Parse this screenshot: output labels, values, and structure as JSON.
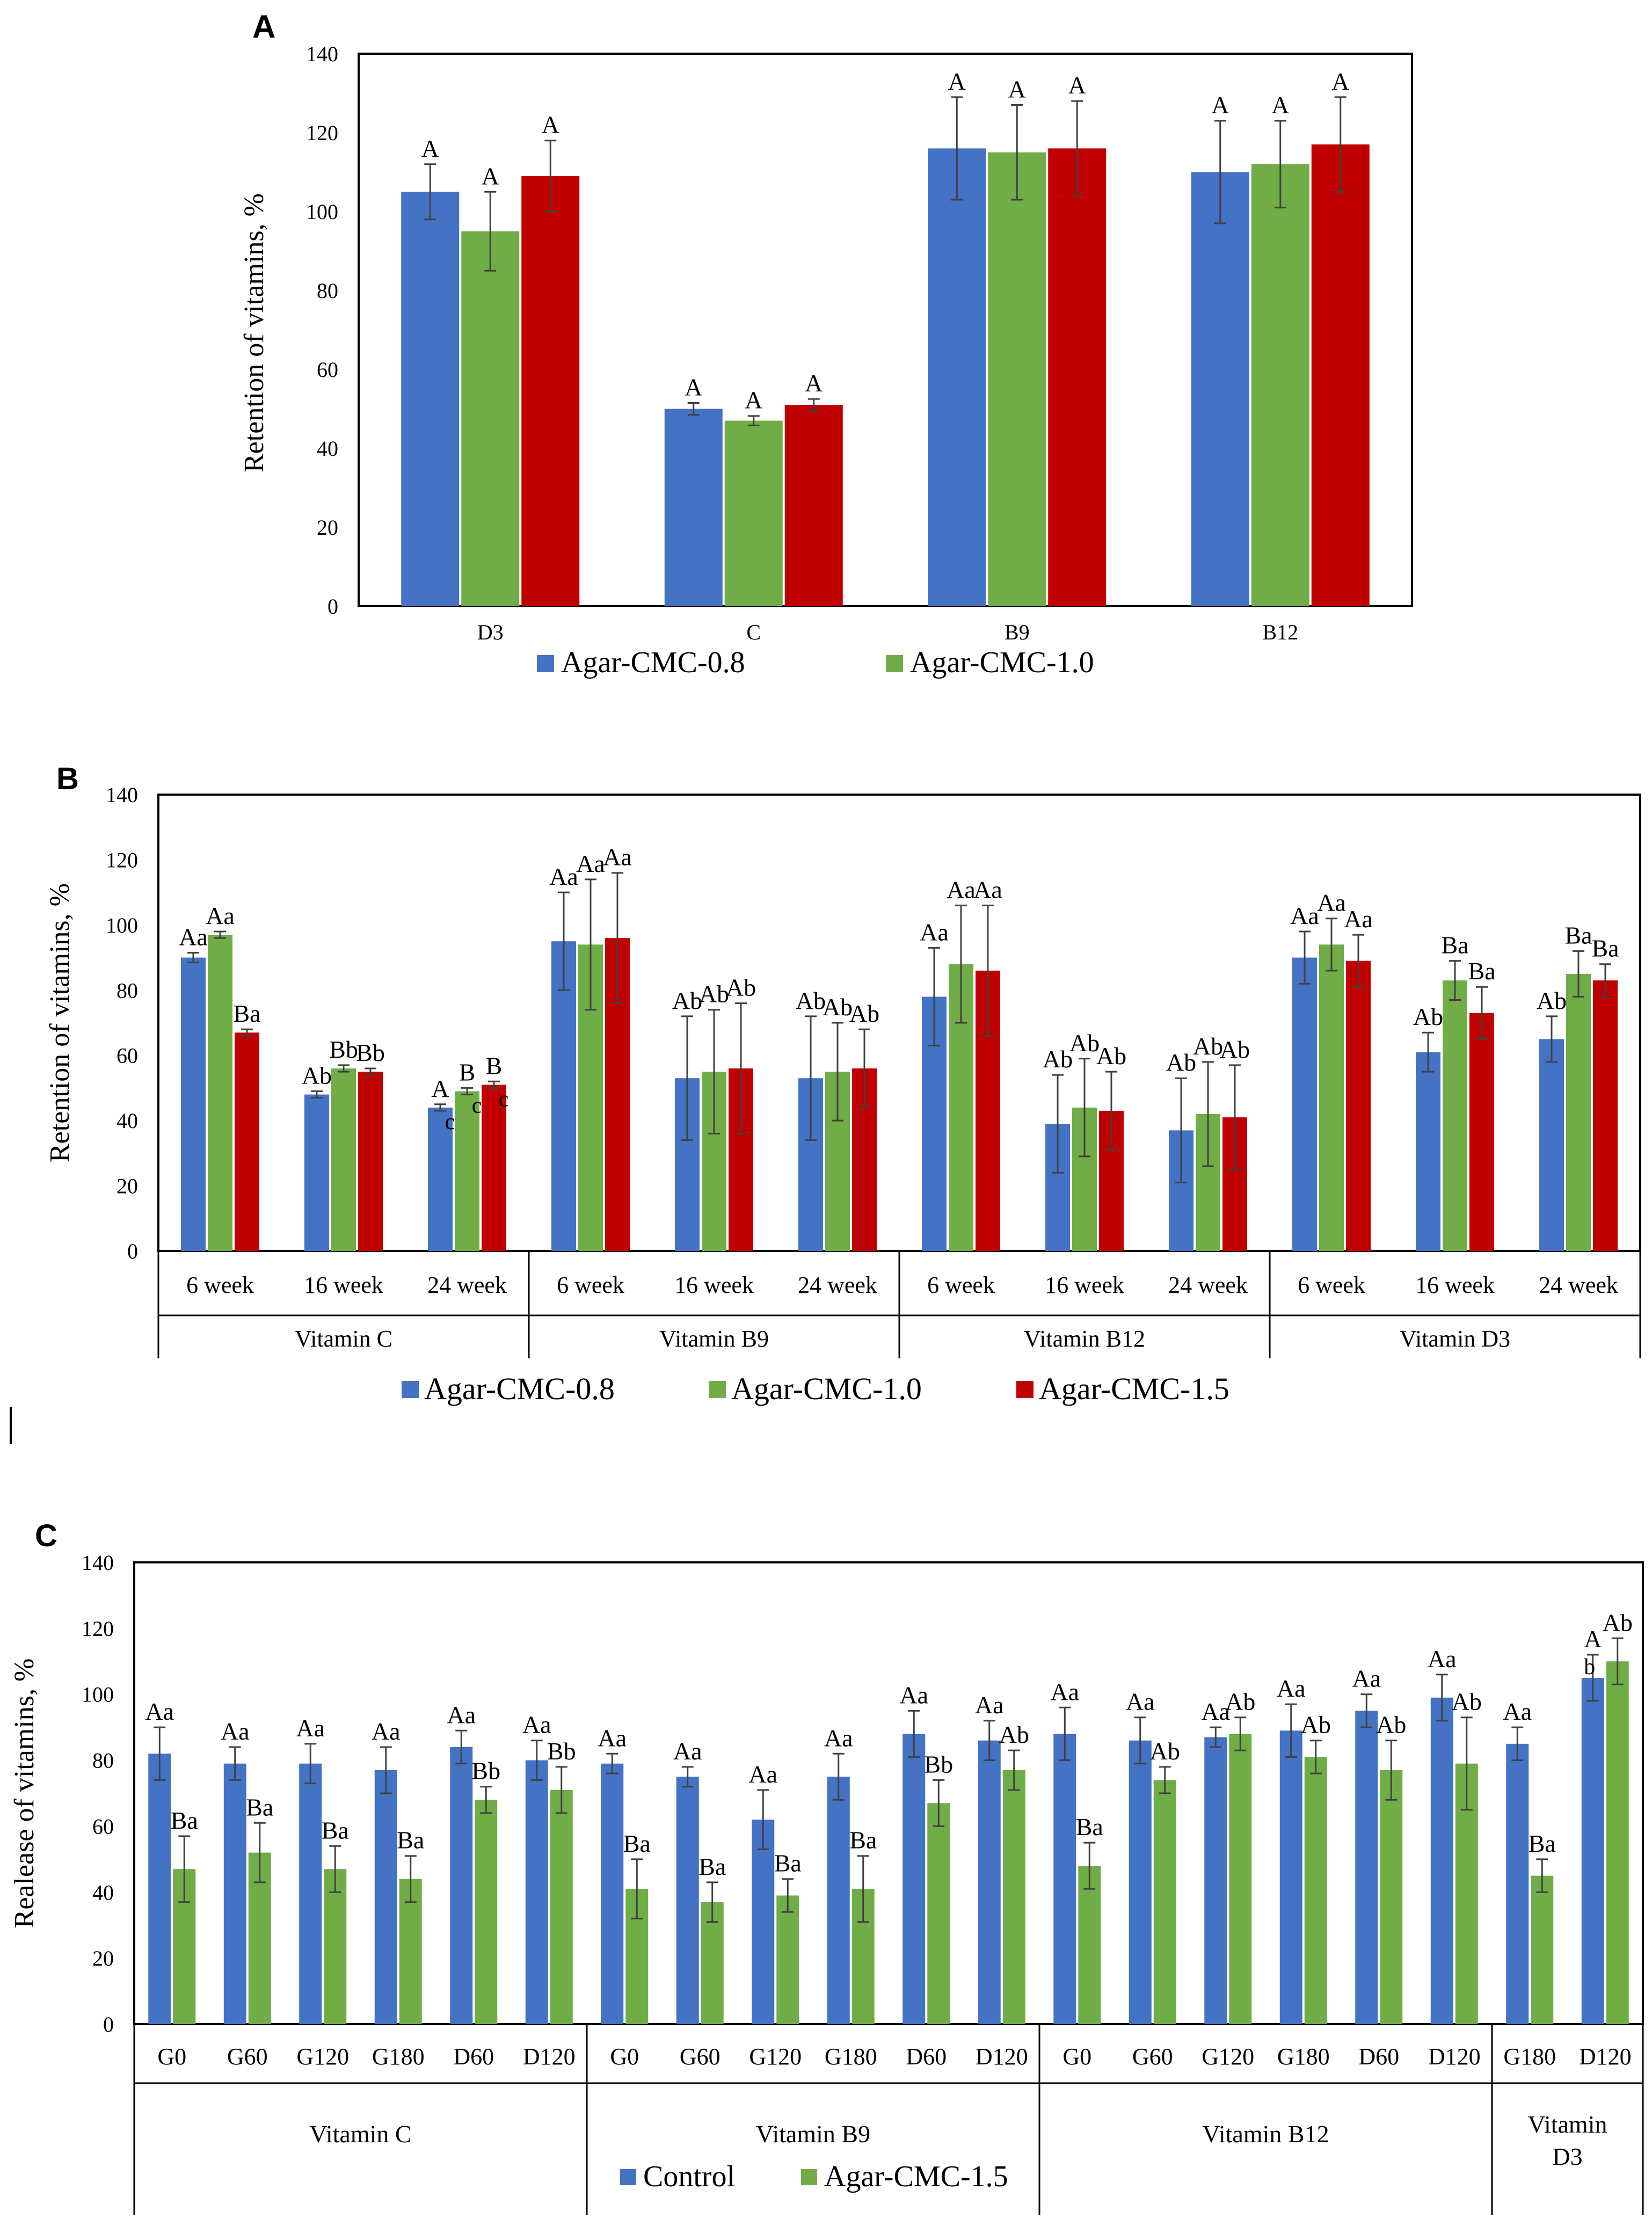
{
  "colors": {
    "blue": "#4472C4",
    "green": "#70AD47",
    "red": "#C00000",
    "axis": "#000000",
    "error": "#404040"
  },
  "chart_data": [
    {
      "panel": "A",
      "type": "bar",
      "ylabel": "Retention of vitamins, %",
      "ylim": [
        0,
        140
      ],
      "yticks": [
        0,
        20,
        40,
        60,
        80,
        100,
        120,
        140
      ],
      "categories": [
        "D3",
        "C",
        "B9",
        "B12"
      ],
      "series": [
        {
          "name": "Agar-CMC-0.8",
          "color": "#4472C4",
          "values": [
            105,
            50,
            116,
            110
          ],
          "errors": [
            7,
            1.5,
            13,
            13
          ],
          "labels": [
            "A",
            "A",
            "A",
            "A"
          ]
        },
        {
          "name": "Agar-CMC-1.0",
          "color": "#70AD47",
          "values": [
            95,
            47,
            115,
            112
          ],
          "errors": [
            10,
            1.2,
            12,
            11
          ],
          "labels": [
            "A",
            "A",
            "A",
            "A"
          ]
        },
        {
          "name": "",
          "color": "#C00000",
          "values": [
            109,
            51,
            116,
            117
          ],
          "errors": [
            9,
            1.5,
            12,
            12
          ],
          "labels": [
            "A",
            "A",
            "A",
            "A"
          ]
        }
      ],
      "legend": [
        "Agar-CMC-0.8",
        "Agar-CMC-1.0"
      ]
    },
    {
      "panel": "B",
      "type": "bar",
      "ylabel": "Retention of vitamins, %",
      "ylim": [
        0,
        140
      ],
      "yticks": [
        0,
        20,
        40,
        60,
        80,
        100,
        120,
        140
      ],
      "groups": [
        {
          "name": "Vitamin C",
          "subs": [
            "6 week",
            "16 week",
            "24 week"
          ]
        },
        {
          "name": "Vitamin B9",
          "subs": [
            "6 week",
            "16 week",
            "24 week"
          ]
        },
        {
          "name": "Vitamin B12",
          "subs": [
            "6 week",
            "16 week",
            "24 week"
          ]
        },
        {
          "name": "Vitamin D3",
          "subs": [
            "6 week",
            "16 week",
            "24 week"
          ]
        }
      ],
      "series": [
        {
          "name": "Agar-CMC-0.8",
          "color": "#4472C4",
          "values": [
            90,
            48,
            44,
            95,
            53,
            53,
            78,
            39,
            37,
            90,
            61,
            65
          ],
          "errors": [
            1.5,
            1,
            1,
            15,
            19,
            19,
            15,
            15,
            16,
            8,
            6,
            7
          ],
          "labels": [
            "Aa",
            "Ab",
            "A",
            "Aa",
            "Ab",
            "Ab",
            "Aa",
            "Ab",
            "Ab",
            "Aa",
            "Ab",
            "Ab"
          ]
        },
        {
          "name": "Agar-CMC-1.0",
          "color": "#70AD47",
          "values": [
            97,
            56,
            49,
            94,
            55,
            55,
            88,
            44,
            42,
            94,
            83,
            85
          ],
          "errors": [
            1,
            1,
            1,
            20,
            19,
            15,
            18,
            15,
            16,
            8,
            6,
            7
          ],
          "labels": [
            "Aa",
            "Bb",
            "B",
            "Aa",
            "Ab",
            "Ab",
            "Aa",
            "Ab",
            "Ab",
            "Aa",
            "Ba",
            "Ba"
          ]
        },
        {
          "name": "Agar-CMC-1.5",
          "color": "#C00000",
          "values": [
            67,
            55,
            51,
            96,
            56,
            56,
            86,
            43,
            41,
            89,
            73,
            83
          ],
          "errors": [
            1,
            1,
            1,
            20,
            20,
            12,
            20,
            12,
            16,
            8,
            8,
            5
          ],
          "labels": [
            "Ba",
            "Bb",
            "B",
            "Aa",
            "Ab",
            "Ab",
            "Aa",
            "Ab",
            "Ab",
            "Aa",
            "Ba",
            "Ba"
          ]
        }
      ],
      "extra_labels": [
        "c",
        "c",
        "c"
      ],
      "legend": [
        "Agar-CMC-0.8",
        "Agar-CMC-1.0",
        "Agar-CMC-1.5"
      ]
    },
    {
      "panel": "C",
      "type": "bar",
      "ylabel": "Realease of vitamins, %",
      "ylim": [
        0,
        140
      ],
      "yticks": [
        0,
        20,
        40,
        60,
        80,
        100,
        120,
        140
      ],
      "groups": [
        {
          "name": "Vitamin C",
          "subs": [
            "G0",
            "G60",
            "G120",
            "G180",
            "D60",
            "D120"
          ]
        },
        {
          "name": "Vitamin B9",
          "subs": [
            "G0",
            "G60",
            "G120",
            "G180",
            "D60",
            "D120"
          ]
        },
        {
          "name": "Vitamin B12",
          "subs": [
            "G0",
            "G60",
            "G120",
            "G180",
            "D60",
            "D120"
          ]
        },
        {
          "name": "Vitamin D3",
          "subs": [
            "G180",
            "D120"
          ]
        }
      ],
      "series": [
        {
          "name": "Control",
          "color": "#4472C4",
          "values": [
            82,
            79,
            79,
            77,
            84,
            80,
            79,
            75,
            62,
            75,
            88,
            86,
            88,
            86,
            87,
            89,
            95,
            99,
            85,
            105
          ],
          "errors": [
            8,
            5,
            6,
            7,
            5,
            6,
            3,
            3,
            9,
            7,
            7,
            6,
            8,
            7,
            3,
            8,
            5,
            7,
            5,
            7
          ],
          "labels": [
            "Aa",
            "Aa",
            "Aa",
            "Aa",
            "Aa",
            "Aa",
            "Aa",
            "Aa",
            "Aa",
            "Aa",
            "Aa",
            "Aa",
            "Aa",
            "Aa",
            "Aa",
            "Aa",
            "Aa",
            "Aa",
            "Aa",
            "A"
          ]
        },
        {
          "name": "Agar-CMC-1.5",
          "color": "#70AD47",
          "values": [
            47,
            52,
            47,
            44,
            68,
            71,
            41,
            37,
            39,
            41,
            67,
            77,
            48,
            74,
            88,
            81,
            77,
            79,
            45,
            110
          ],
          "errors": [
            10,
            9,
            7,
            7,
            4,
            7,
            9,
            6,
            5,
            10,
            7,
            6,
            7,
            4,
            5,
            5,
            9,
            14,
            5,
            7
          ],
          "labels": [
            "Ba",
            "Ba",
            "Ba",
            "Ba",
            "Bb",
            "Bb",
            "Ba",
            "Ba",
            "Ba",
            "Ba",
            "Bb",
            "Ab",
            "Ba",
            "Ab",
            "Ab",
            "Ab",
            "Ab",
            "Ab",
            "Ba",
            "Ab"
          ]
        }
      ],
      "extra_labels": [
        "b"
      ],
      "legend": [
        "Control",
        "Agar-CMC-1.5"
      ]
    }
  ]
}
